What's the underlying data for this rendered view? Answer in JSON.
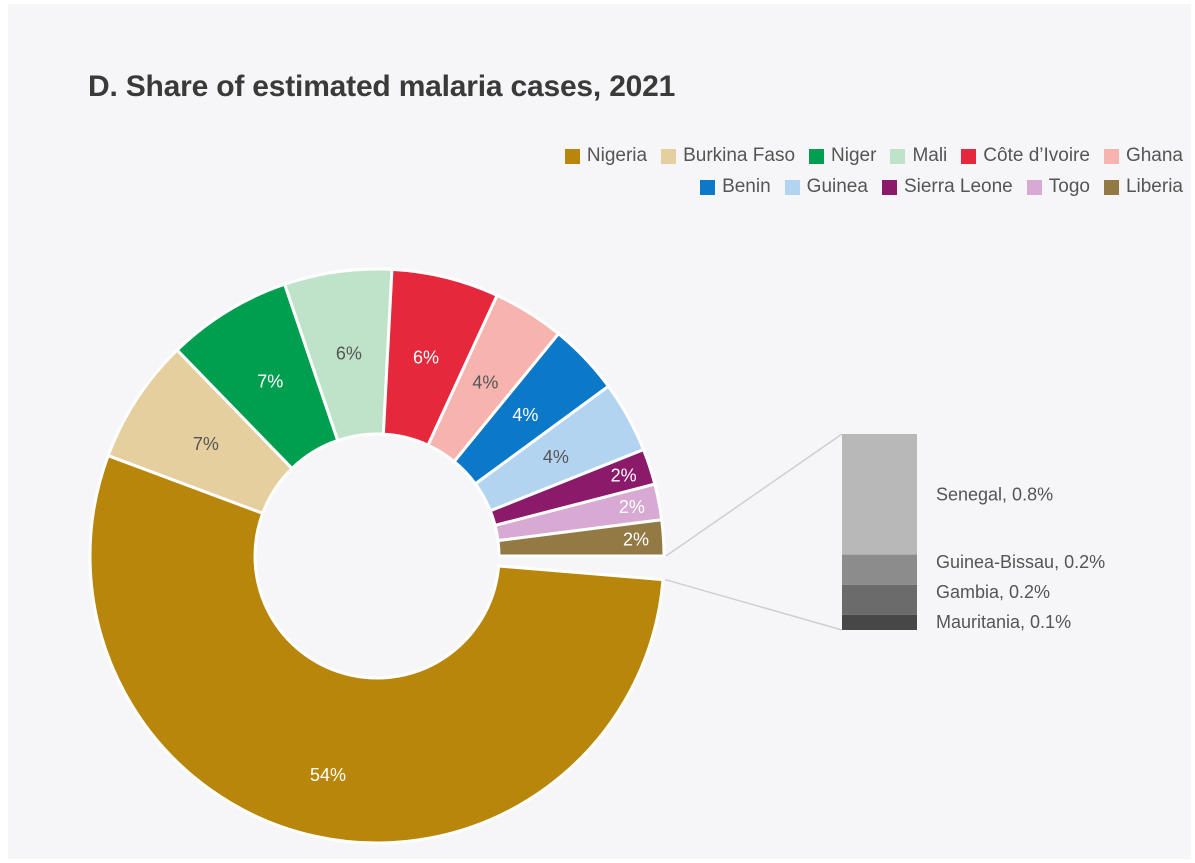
{
  "chart_data": {
    "type": "pie",
    "title": "D. Share of estimated malaria cases, 2021",
    "donut": true,
    "legend_position": "top-right",
    "slices": [
      {
        "name": "Nigeria",
        "value": 54,
        "label": "54%",
        "color": "#b8860b",
        "label_color": "#ffffff"
      },
      {
        "name": "Burkina Faso",
        "value": 7,
        "label": "7%",
        "color": "#e6cf9e",
        "label_color": "#555555"
      },
      {
        "name": "Niger",
        "value": 7,
        "label": "7%",
        "color": "#009e4f",
        "label_color": "#ffffff"
      },
      {
        "name": "Mali",
        "value": 6,
        "label": "6%",
        "color": "#bfe3c8",
        "label_color": "#555555"
      },
      {
        "name": "Côte d’Ivoire",
        "value": 6,
        "label": "6%",
        "color": "#e5283b",
        "label_color": "#ffffff"
      },
      {
        "name": "Ghana",
        "value": 4,
        "label": "4%",
        "color": "#f7b3ad",
        "label_color": "#555555"
      },
      {
        "name": "Benin",
        "value": 4,
        "label": "4%",
        "color": "#0b78c8",
        "label_color": "#ffffff"
      },
      {
        "name": "Guinea",
        "value": 4,
        "label": "4%",
        "color": "#b3d4f0",
        "label_color": "#555555"
      },
      {
        "name": "Sierra Leone",
        "value": 2,
        "label": "2%",
        "color": "#8b1a6b",
        "label_color": "#ffffff"
      },
      {
        "name": "Togo",
        "value": 2,
        "label": "2%",
        "color": "#d7a9d3",
        "label_color": "#ffffff"
      },
      {
        "name": "Liberia",
        "value": 2,
        "label": "2%",
        "color": "#937a45",
        "label_color": "#ffffff"
      }
    ],
    "other_breakdown": [
      {
        "name": "Senegal",
        "value": 0.8,
        "label": "Senegal, 0.8%",
        "color": "#b8b8b8"
      },
      {
        "name": "Guinea-Bissau",
        "value": 0.2,
        "label": "Guinea-Bissau, 0.2%",
        "color": "#8c8c8c"
      },
      {
        "name": "Gambia",
        "value": 0.2,
        "label": "Gambia, 0.2%",
        "color": "#6b6b6b"
      },
      {
        "name": "Mauritania",
        "value": 0.1,
        "label": "Mauritania, 0.1%",
        "color": "#474747"
      }
    ],
    "legend_rows": [
      [
        "Nigeria",
        "Burkina Faso",
        "Niger",
        "Mali",
        "Côte d’Ivoire",
        "Ghana"
      ],
      [
        "Benin",
        "Guinea",
        "Sierra Leone",
        "Togo",
        "Liberia"
      ]
    ]
  }
}
